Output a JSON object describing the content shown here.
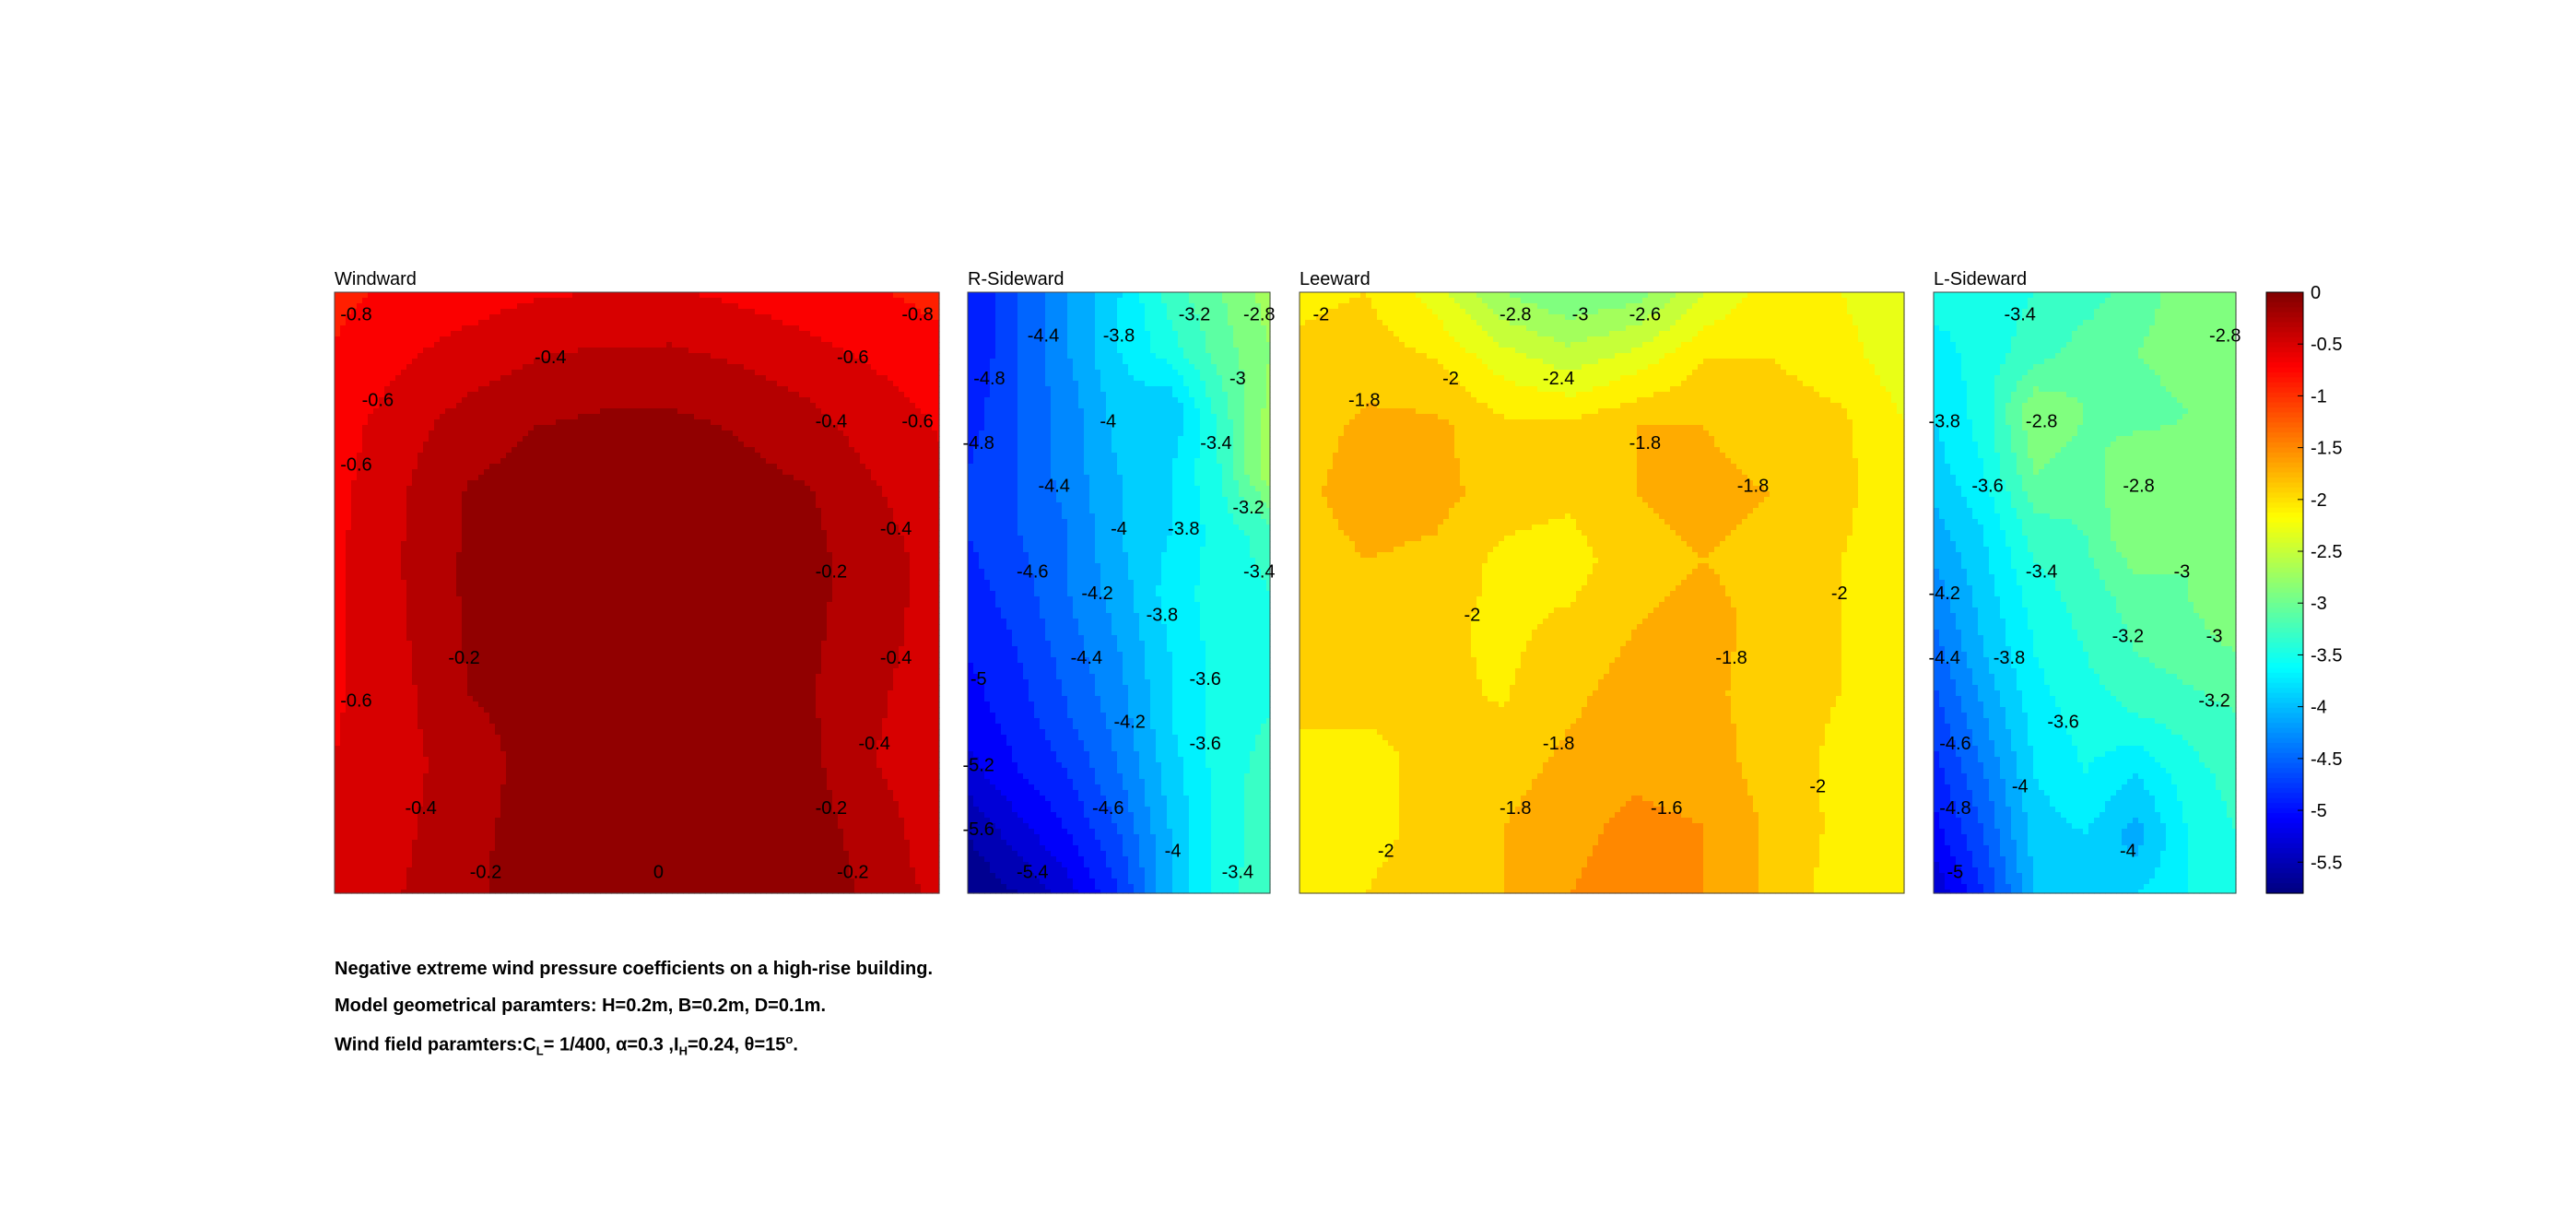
{
  "chart_data": {
    "type": "heatmap",
    "subtype": "filled-contour",
    "colormap": "jet",
    "colorbar": {
      "range": [
        -5.8,
        0
      ],
      "ticks": [
        0,
        -0.5,
        -1,
        -1.5,
        -2,
        -2.5,
        -3,
        -3.5,
        -4,
        -4.5,
        -5,
        -5.5
      ],
      "tick_labels": [
        "0",
        "-0.5",
        "-1",
        "-1.5",
        "-2",
        "-2.5",
        "-3",
        "-3.5",
        "-4",
        "-4.5",
        "-5",
        "-5.5"
      ]
    },
    "panels": [
      {
        "title": "Windward",
        "grid": [
          [
            -0.85,
            -0.75,
            -0.7,
            -0.62,
            -0.6,
            -0.58,
            -0.65,
            -0.72,
            -0.78,
            -0.88
          ],
          [
            -0.78,
            -0.62,
            -0.5,
            -0.4,
            -0.35,
            -0.35,
            -0.42,
            -0.52,
            -0.62,
            -0.7
          ],
          [
            -0.7,
            -0.48,
            -0.3,
            -0.2,
            -0.15,
            -0.15,
            -0.22,
            -0.32,
            -0.5,
            -0.62
          ],
          [
            -0.66,
            -0.42,
            -0.18,
            -0.1,
            -0.08,
            -0.08,
            -0.12,
            -0.18,
            -0.38,
            -0.55
          ],
          [
            -0.64,
            -0.4,
            -0.16,
            -0.08,
            -0.06,
            -0.06,
            -0.1,
            -0.14,
            -0.3,
            -0.5
          ],
          [
            -0.63,
            -0.42,
            -0.16,
            -0.08,
            -0.06,
            -0.06,
            -0.08,
            -0.16,
            -0.3,
            -0.52
          ],
          [
            -0.63,
            -0.45,
            -0.2,
            -0.1,
            -0.06,
            -0.06,
            -0.08,
            -0.18,
            -0.36,
            -0.56
          ],
          [
            -0.6,
            -0.46,
            -0.3,
            -0.12,
            -0.06,
            -0.06,
            -0.08,
            -0.14,
            -0.4,
            -0.58
          ],
          [
            -0.56,
            -0.44,
            -0.26,
            -0.1,
            -0.04,
            -0.04,
            -0.05,
            -0.12,
            -0.28,
            -0.56
          ],
          [
            -0.5,
            -0.4,
            -0.24,
            -0.08,
            -0.02,
            0.0,
            -0.04,
            -0.1,
            -0.24,
            -0.48
          ]
        ],
        "contour_labels": [
          "-0.8",
          "-0.6",
          "-0.6",
          "-0.8",
          "-0.4",
          "-0.4",
          "-0.6",
          "-0.2",
          "-0.2",
          "-0.4",
          "-0.6",
          "-0.4",
          "-0.2",
          "-0.2",
          "-0.6",
          "-0.4",
          "-0.2",
          "0",
          "-0.4"
        ]
      },
      {
        "title": "R-Sideward",
        "grid": [
          [
            -5.0,
            -4.6,
            -4.2,
            -3.8,
            -3.3,
            -3.0,
            -2.7
          ],
          [
            -5.0,
            -4.6,
            -4.2,
            -3.8,
            -3.5,
            -3.1,
            -2.8
          ],
          [
            -4.9,
            -4.6,
            -4.3,
            -3.9,
            -4.0,
            -3.3,
            -2.7
          ],
          [
            -4.8,
            -4.6,
            -4.3,
            -4.0,
            -3.8,
            -3.4,
            -2.6
          ],
          [
            -4.8,
            -4.6,
            -4.4,
            -4.0,
            -3.8,
            -3.5,
            -3.3
          ],
          [
            -4.9,
            -4.7,
            -4.4,
            -4.1,
            -3.7,
            -3.5,
            -3.4
          ],
          [
            -5.0,
            -4.8,
            -4.5,
            -4.2,
            -3.8,
            -3.5,
            -3.4
          ],
          [
            -5.1,
            -4.9,
            -4.6,
            -4.3,
            -3.8,
            -3.5,
            -3.4
          ],
          [
            -5.3,
            -5.0,
            -4.8,
            -4.4,
            -3.9,
            -3.5,
            -3.3
          ],
          [
            -5.6,
            -5.3,
            -5.0,
            -4.6,
            -4.0,
            -3.5,
            -3.3
          ],
          [
            -5.8,
            -5.6,
            -5.3,
            -4.8,
            -4.0,
            -3.5,
            -3.2
          ]
        ],
        "contour_labels": [
          "-5",
          "-4.8",
          "-4.2",
          "-4",
          "-3.8",
          "-3.6",
          "-3.4",
          "-2.8",
          "-3",
          "-3.2",
          "-4",
          "-3.8",
          "-4.4",
          "-4.6",
          "-4.8",
          "-3.6",
          "-3.4",
          "-4.2",
          "-4",
          "-3.8",
          "-4.4",
          "-5.2",
          "-5.4",
          "-5.6",
          "-4.6",
          "-4.4",
          "-3.4",
          "-3.2"
        ]
      },
      {
        "title": "Leeward",
        "grid": [
          [
            -2.05,
            -2.0,
            -2.3,
            -2.8,
            -3.0,
            -2.9,
            -2.4,
            -2.1,
            -2.2,
            -2.4
          ],
          [
            -1.95,
            -1.9,
            -2.0,
            -2.3,
            -2.5,
            -2.3,
            -2.0,
            -2.0,
            -2.1,
            -2.35
          ],
          [
            -1.9,
            -1.75,
            -1.75,
            -1.95,
            -1.95,
            -1.8,
            -1.8,
            -1.9,
            -1.95,
            -2.2
          ],
          [
            -1.85,
            -1.7,
            -1.72,
            -1.9,
            -1.95,
            -1.8,
            -1.75,
            -1.8,
            -1.95,
            -2.15
          ],
          [
            -1.9,
            -1.8,
            -1.85,
            -2.05,
            -2.1,
            -1.85,
            -1.8,
            -1.85,
            -2.0,
            -2.1
          ],
          [
            -2.0,
            -1.9,
            -1.95,
            -2.05,
            -1.95,
            -1.8,
            -1.75,
            -1.85,
            -2.0,
            -2.05
          ],
          [
            -2.0,
            -1.95,
            -1.95,
            -2.02,
            -1.85,
            -1.7,
            -1.75,
            -1.9,
            -2.0,
            -2.05
          ],
          [
            -2.0,
            -2.05,
            -1.95,
            -1.9,
            -1.75,
            -1.65,
            -1.7,
            -1.9,
            -2.05,
            -2.1
          ],
          [
            -2.0,
            -2.05,
            -1.95,
            -1.8,
            -1.65,
            -1.55,
            -1.6,
            -1.85,
            -2.05,
            -2.15
          ],
          [
            -2.0,
            -2.0,
            -1.9,
            -1.8,
            -1.6,
            -1.5,
            -1.6,
            -1.85,
            -2.1,
            -2.2
          ]
        ],
        "contour_labels": [
          "-3",
          "-2.8",
          "-2.6",
          "-1.8",
          "-2",
          "-2.4",
          "-2",
          "-1.8",
          "-1.8",
          "-1.8",
          "-1.8",
          "-2",
          "-2",
          "-2",
          "-1.8",
          "-1.6",
          "-2"
        ]
      },
      {
        "title": "L-Sideward",
        "grid": [
          [
            -3.5,
            -3.5,
            -3.4,
            -3.3,
            -3.1,
            -2.9,
            -2.8
          ],
          [
            -3.7,
            -3.5,
            -3.3,
            -3.1,
            -3.0,
            -2.9,
            -2.8
          ],
          [
            -3.8,
            -3.5,
            -2.8,
            -3.0,
            -3.1,
            -3.0,
            -2.9
          ],
          [
            -3.9,
            -3.6,
            -3.0,
            -3.1,
            -2.8,
            -2.9,
            -2.9
          ],
          [
            -4.1,
            -3.8,
            -3.3,
            -3.2,
            -2.8,
            -3.0,
            -2.8
          ],
          [
            -4.3,
            -3.9,
            -3.5,
            -3.3,
            -3.1,
            -3.0,
            -2.8
          ],
          [
            -4.5,
            -4.0,
            -3.6,
            -3.4,
            -3.2,
            -3.1,
            -3.0
          ],
          [
            -4.7,
            -4.2,
            -3.7,
            -3.5,
            -3.4,
            -3.3,
            -3.2
          ],
          [
            -4.9,
            -4.4,
            -3.8,
            -3.6,
            -3.8,
            -3.5,
            -3.3
          ],
          [
            -5.1,
            -4.6,
            -3.9,
            -3.8,
            -4.1,
            -3.6,
            -3.4
          ],
          [
            -5.4,
            -4.8,
            -4.0,
            -3.9,
            -3.8,
            -3.6,
            -3.5
          ]
        ],
        "contour_labels": [
          "-3.4",
          "-3.4",
          "-3.2",
          "-2.8",
          "-3",
          "-3.6",
          "-2.8",
          "-3.8",
          "-3",
          "-2.8",
          "-4",
          "-4.2",
          "-4.4",
          "-3.2",
          "-4.6",
          "-4.8",
          "-5",
          "-3.6",
          "-4",
          "-3.8"
        ]
      }
    ]
  },
  "captions": {
    "line1": "Negative extreme wind pressure coefficients on a high-rise building.",
    "line2": "Model geometrical paramters: H=0.2m, B=0.2m, D=0.1m.",
    "line3": {
      "prefix": "Wind field paramters:C",
      "cl_sub": "L",
      "cl_value": "= 1/400, α=0.3 ,I",
      "ih_sub": "H",
      "ih_value": "=0.24, θ=15",
      "theta_sup": "o",
      "end": "."
    }
  }
}
